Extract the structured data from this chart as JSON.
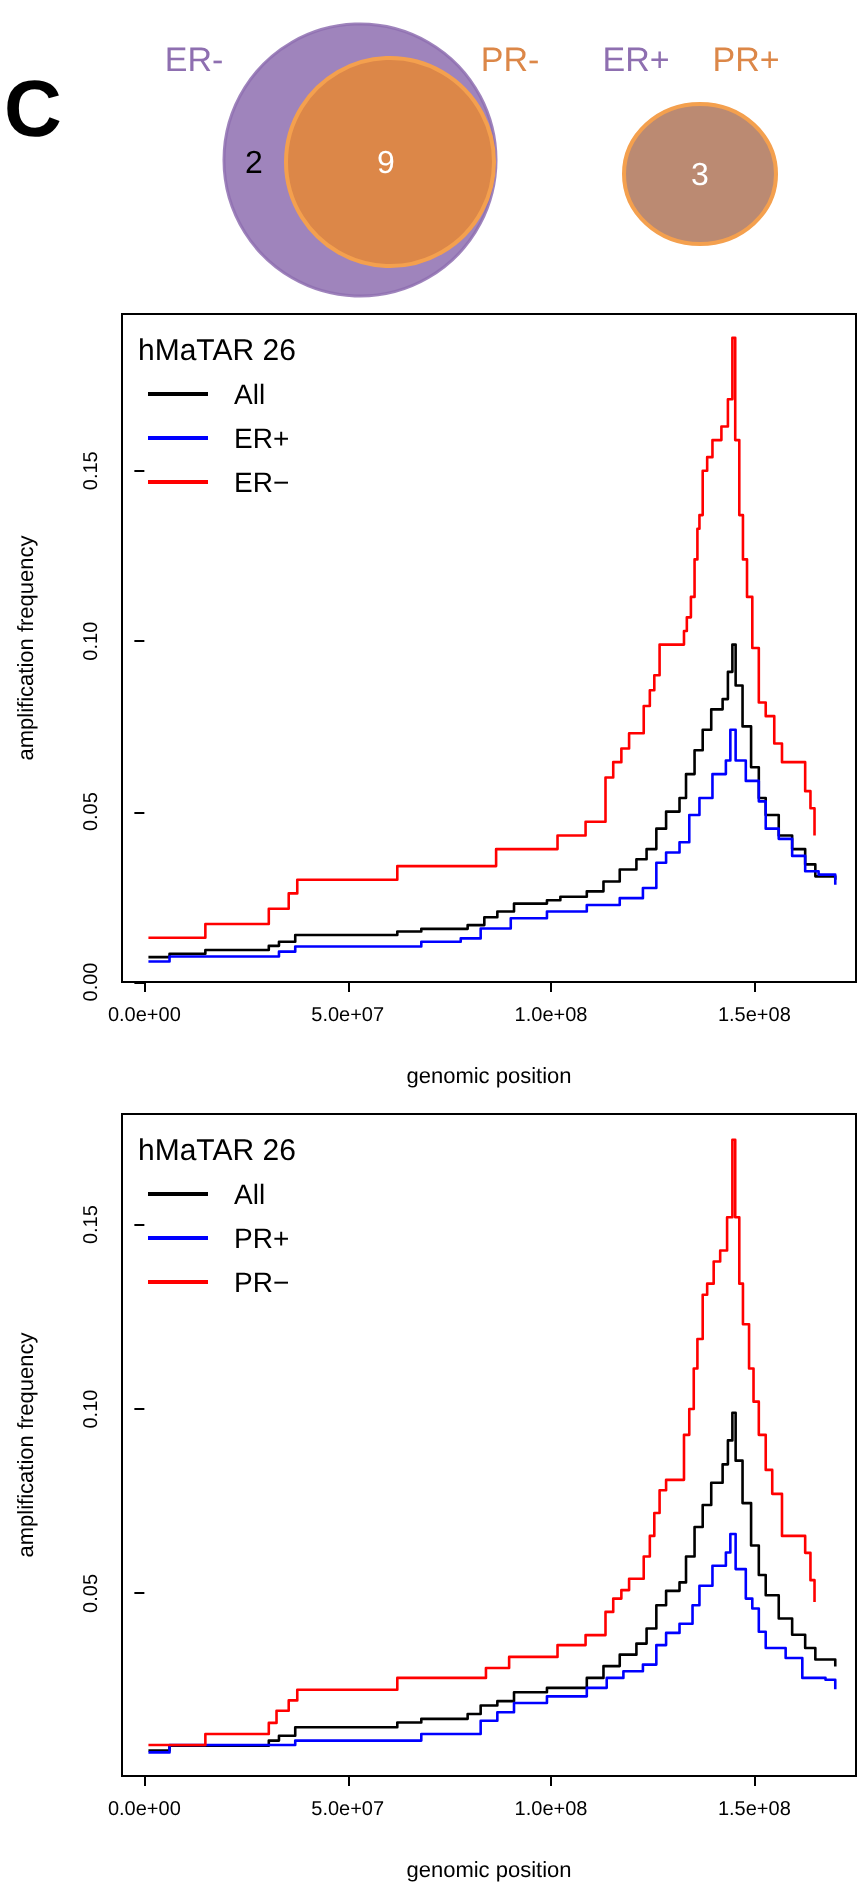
{
  "chart_data": [
    {
      "type": "other",
      "annotations": [
        "C",
        "ER-",
        "PR-",
        "ER+",
        "PR+"
      ],
      "categories": [
        null,
        null,
        null
      ],
      "values": [
        2,
        9,
        3
      ],
      "data_labels": true,
      "colors": [
        "#8e6fb0",
        "#dc8748",
        "#bb8a72"
      ]
    },
    {
      "type": "step",
      "legend_title": "hMaTAR 26",
      "xlabel": "genomic position",
      "ylabel": "amplification frequency",
      "legend": "top left",
      "grid": false,
      "xlim": [
        -5500000,
        175000000
      ],
      "xticks": [
        {
          "value": 0,
          "label": "0.0e+00"
        },
        {
          "value": 50000000,
          "label": "5.0e+07"
        },
        {
          "value": 100000000,
          "label": "1.0e+08"
        },
        {
          "value": 150000000,
          "label": "1.5e+08"
        }
      ],
      "ylim": [
        0,
        0.196
      ],
      "yticks": [
        {
          "value": 0,
          "label": "0.00"
        },
        {
          "value": 0.05,
          "label": "0.05"
        },
        {
          "value": 0.1,
          "label": "0.10"
        },
        {
          "value": 0.15,
          "label": "0.15"
        }
      ],
      "series": [
        {
          "name": "All",
          "color": "#000000",
          "x": [
            1000000,
            6190000,
            15000000,
            30600000,
            33100000,
            37100000,
            62200000,
            68100000,
            79500000,
            83600000,
            86800000,
            90900000,
            99000000,
            102300000,
            108800000,
            112900000,
            116900000,
            121000000,
            123500000,
            125900000,
            128300000,
            131600000,
            133200000,
            135300000,
            137300000,
            139400000,
            142200000,
            143500000,
            144600000,
            145400000,
            147100000,
            149200000,
            151100000,
            152800000,
            156000000,
            159300000,
            162500000,
            165000000,
            169900000
          ],
          "values": [
            0.0073,
            0.0083,
            0.0094,
            0.0106,
            0.0118,
            0.0138,
            0.0148,
            0.0156,
            0.0167,
            0.019,
            0.0207,
            0.023,
            0.024,
            0.025,
            0.0266,
            0.0295,
            0.033,
            0.036,
            0.039,
            0.045,
            0.05,
            0.054,
            0.061,
            0.068,
            0.074,
            0.08,
            0.083,
            0.091,
            0.099,
            0.087,
            0.075,
            0.063,
            0.054,
            0.049,
            0.043,
            0.039,
            0.0345,
            0.031,
            0.03
          ]
        },
        {
          "name": "ER+",
          "color": "#0000ff",
          "x": [
            1000000,
            6190000,
            33100000,
            37100000,
            68100000,
            77800000,
            82700000,
            90100000,
            99000000,
            108800000,
            116900000,
            122600000,
            125900000,
            128300000,
            131600000,
            134000000,
            136500000,
            139700000,
            143000000,
            144100000,
            145400000,
            147900000,
            151100000,
            152800000,
            156000000,
            159300000,
            162500000,
            165800000,
            169900000
          ],
          "values": [
            0.006,
            0.0075,
            0.0089,
            0.0104,
            0.0118,
            0.0128,
            0.0157,
            0.0187,
            0.0207,
            0.0226,
            0.0246,
            0.0276,
            0.035,
            0.038,
            0.041,
            0.049,
            0.054,
            0.061,
            0.065,
            0.074,
            0.065,
            0.059,
            0.053,
            0.045,
            0.042,
            0.037,
            0.0325,
            0.0315,
            0.0285
          ]
        },
        {
          "name": "ER−",
          "color": "#ff0000",
          "x": [
            1000000,
            15000000,
            30600000,
            35500000,
            37600000,
            62200000,
            86500000,
            101600000,
            108500000,
            113400000,
            115300000,
            117300000,
            119200000,
            122800000,
            124300000,
            125400000,
            126700000,
            132700000,
            133400000,
            134400000,
            135300000,
            136000000,
            136500000,
            137300000,
            138400000,
            139700000,
            141900000,
            143500000,
            144600000,
            145300000,
            146300000,
            147200000,
            148200000,
            149500000,
            151100000,
            152800000,
            154900000,
            156800000,
            162500000,
            163800000,
            164800000
          ],
          "values": [
            0.013,
            0.017,
            0.0215,
            0.026,
            0.03,
            0.034,
            0.039,
            0.043,
            0.047,
            0.06,
            0.0645,
            0.0685,
            0.073,
            0.081,
            0.0856,
            0.09,
            0.099,
            0.103,
            0.107,
            0.113,
            0.124,
            0.133,
            0.137,
            0.15,
            0.154,
            0.159,
            0.163,
            0.171,
            0.189,
            0.159,
            0.137,
            0.124,
            0.113,
            0.098,
            0.082,
            0.078,
            0.07,
            0.0645,
            0.056,
            0.051,
            0.043
          ]
        }
      ]
    },
    {
      "type": "step",
      "legend_title": "hMaTAR 26",
      "xlabel": "genomic position",
      "ylabel": "amplification frequency",
      "legend": "top left",
      "grid": false,
      "xlim": [
        -5500000,
        175000000
      ],
      "xticks": [
        {
          "value": 0,
          "label": "0.0e+00"
        },
        {
          "value": 50000000,
          "label": "5.0e+07"
        },
        {
          "value": 100000000,
          "label": "1.0e+08"
        },
        {
          "value": 150000000,
          "label": "1.5e+08"
        }
      ],
      "ylim": [
        0.0005,
        0.18
      ],
      "yticks": [
        {
          "value": 0.05,
          "label": "0.05"
        },
        {
          "value": 0.1,
          "label": "0.10"
        },
        {
          "value": 0.15,
          "label": "0.15"
        }
      ],
      "series": [
        {
          "name": "All",
          "color": "#000000",
          "x": [
            1000000,
            6190000,
            30600000,
            33100000,
            37100000,
            62200000,
            68100000,
            79500000,
            82700000,
            86800000,
            90900000,
            99000000,
            108800000,
            112900000,
            116900000,
            121000000,
            123500000,
            125900000,
            128300000,
            131600000,
            133200000,
            135300000,
            137300000,
            139400000,
            142200000,
            143500000,
            144600000,
            145400000,
            147100000,
            149200000,
            151100000,
            152800000,
            156000000,
            159300000,
            162500000,
            165000000,
            169900000
          ],
          "values": [
            0.0074,
            0.0087,
            0.0101,
            0.0114,
            0.0137,
            0.015,
            0.016,
            0.0173,
            0.0196,
            0.0208,
            0.0232,
            0.0244,
            0.0271,
            0.0303,
            0.0334,
            0.0364,
            0.0405,
            0.0468,
            0.0507,
            0.053,
            0.06,
            0.068,
            0.074,
            0.08,
            0.085,
            0.0915,
            0.099,
            0.086,
            0.0745,
            0.063,
            0.055,
            0.0495,
            0.0432,
            0.0388,
            0.0352,
            0.0321,
            0.0302
          ]
        },
        {
          "name": "PR+",
          "color": "#0000ff",
          "x": [
            1000000,
            6190000,
            37100000,
            68100000,
            82700000,
            86800000,
            90900000,
            99000000,
            108800000,
            113700000,
            117800000,
            122600000,
            125900000,
            128300000,
            131600000,
            134800000,
            136500000,
            139700000,
            143000000,
            144100000,
            145400000,
            147900000,
            149500000,
            151100000,
            152800000,
            157700000,
            161800000,
            167500000,
            169900000
          ],
          "values": [
            0.0069,
            0.0089,
            0.0101,
            0.0119,
            0.0155,
            0.0178,
            0.0203,
            0.0221,
            0.0244,
            0.0271,
            0.0289,
            0.0307,
            0.036,
            0.0393,
            0.0418,
            0.0468,
            0.0521,
            0.0575,
            0.0611,
            0.0661,
            0.0566,
            0.0486,
            0.0459,
            0.0396,
            0.0352,
            0.0325,
            0.0271,
            0.0266,
            0.024
          ]
        },
        {
          "name": "PR−",
          "color": "#ff0000",
          "x": [
            1000000,
            15000000,
            30600000,
            32500000,
            35500000,
            37600000,
            62200000,
            84000000,
            89700000,
            101600000,
            108500000,
            113400000,
            115300000,
            117300000,
            119200000,
            122800000,
            124300000,
            125400000,
            126700000,
            128300000,
            132700000,
            134000000,
            135100000,
            136000000,
            137300000,
            138400000,
            140000000,
            141600000,
            143300000,
            144600000,
            145300000,
            146300000,
            147200000,
            148700000,
            149800000,
            151100000,
            152800000,
            154400000,
            156800000,
            162500000,
            163800000,
            164800000
          ],
          "values": [
            0.0089,
            0.0119,
            0.0149,
            0.0182,
            0.021,
            0.0239,
            0.0271,
            0.0298,
            0.0328,
            0.036,
            0.0387,
            0.045,
            0.0486,
            0.0509,
            0.054,
            0.06,
            0.0656,
            0.0718,
            0.078,
            0.0808,
            0.093,
            0.1,
            0.111,
            0.119,
            0.131,
            0.134,
            0.14,
            0.143,
            0.152,
            0.173,
            0.152,
            0.134,
            0.123,
            0.111,
            0.102,
            0.093,
            0.0835,
            0.077,
            0.0656,
            0.061,
            0.0536,
            0.0477
          ]
        }
      ]
    }
  ]
}
